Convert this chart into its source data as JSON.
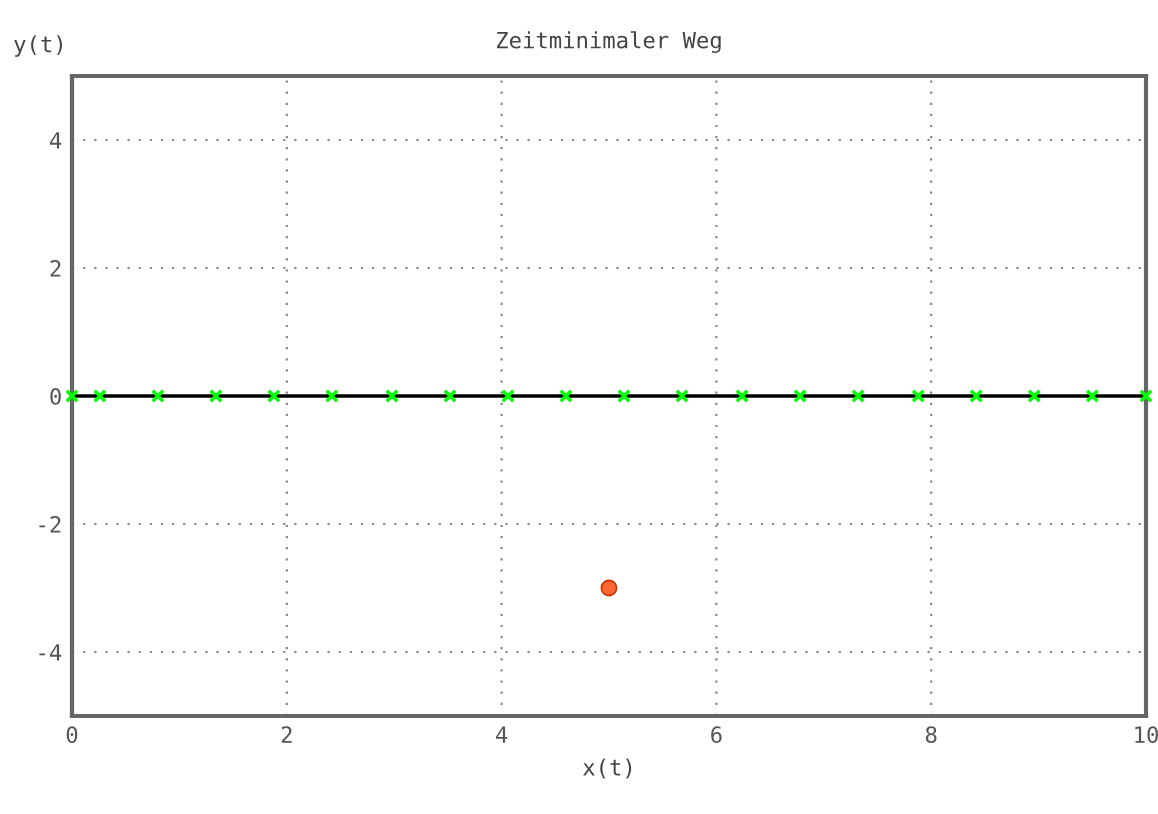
{
  "chart_data": {
    "type": "line",
    "title": "Zeitminimaler Weg",
    "xlabel": "x(t)",
    "ylabel": "y(t)",
    "xlim": [
      0,
      10
    ],
    "ylim": [
      -5,
      5
    ],
    "xticks": [
      0,
      2,
      4,
      6,
      8,
      10
    ],
    "yticks": [
      -4,
      -2,
      0,
      2,
      4
    ],
    "grid": true,
    "legend": false,
    "series": [
      {
        "color": "#000000",
        "marker": "none",
        "x": [
          0,
          10
        ],
        "values": [
          0,
          0
        ]
      },
      {
        "type": "scatter",
        "color": "#00ff00",
        "marker": "cross",
        "x": [
          0,
          0.26,
          0.8,
          1.34,
          1.88,
          2.42,
          2.98,
          3.52,
          4.06,
          4.6,
          5.14,
          5.68,
          6.24,
          6.78,
          7.32,
          7.88,
          8.42,
          8.96,
          9.5,
          10
        ],
        "values": [
          0,
          0,
          0,
          0,
          0,
          0,
          0,
          0,
          0,
          0,
          0,
          0,
          0,
          0,
          0,
          0,
          0,
          0,
          0,
          0
        ]
      },
      {
        "type": "scatter",
        "color": "#ff6633",
        "marker": "circle",
        "x": [
          5
        ],
        "values": [
          -3
        ]
      }
    ]
  }
}
